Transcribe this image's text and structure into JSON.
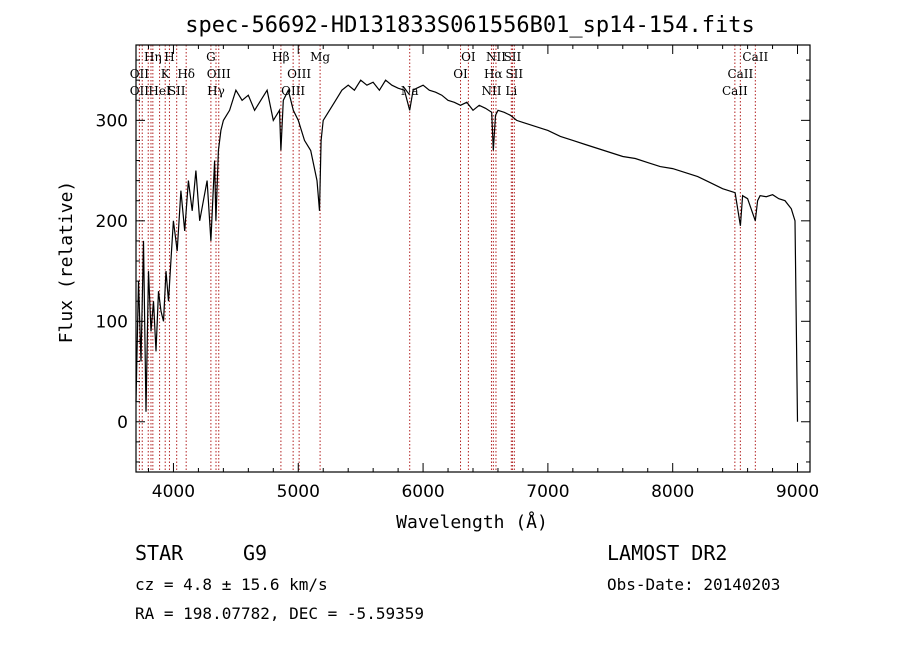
{
  "chart_data": {
    "type": "line",
    "title": "spec-56692-HD131833S061556B01_sp14-154.fits",
    "xlabel": "Wavelength (Å)",
    "ylabel": "Flux (relative)",
    "xlim": [
      3700,
      9100
    ],
    "ylim": [
      -50,
      375
    ],
    "x_ticks": [
      4000,
      5000,
      6000,
      7000,
      8000,
      9000
    ],
    "y_ticks": [
      0,
      100,
      200,
      300
    ],
    "series": [
      {
        "x": [
          3700,
          3720,
          3740,
          3760,
          3780,
          3800,
          3820,
          3840,
          3860,
          3880,
          3900,
          3920,
          3940,
          3960,
          3980,
          4000,
          4030,
          4060,
          4090,
          4120,
          4150,
          4180,
          4210,
          4240,
          4270,
          4300,
          4330,
          4340,
          4360,
          4380,
          4400,
          4450,
          4500,
          4550,
          4600,
          4650,
          4700,
          4750,
          4800,
          4850,
          4861,
          4880,
          4920,
          4960,
          5000,
          5050,
          5100,
          5150,
          5170,
          5183,
          5200,
          5250,
          5300,
          5350,
          5400,
          5450,
          5500,
          5550,
          5600,
          5650,
          5700,
          5750,
          5800,
          5850,
          5893,
          5920,
          5950,
          6000,
          6050,
          6100,
          6150,
          6200,
          6250,
          6300,
          6350,
          6400,
          6450,
          6500,
          6550,
          6563,
          6580,
          6600,
          6650,
          6700,
          6750,
          6800,
          6850,
          6900,
          6950,
          7000,
          7100,
          7200,
          7300,
          7400,
          7500,
          7600,
          7700,
          7800,
          7900,
          8000,
          8100,
          8200,
          8300,
          8400,
          8500,
          8542,
          8560,
          8600,
          8662,
          8680,
          8700,
          8750,
          8800,
          8850,
          8900,
          8950,
          8980,
          9000
        ],
        "y": [
          20,
          140,
          60,
          180,
          10,
          150,
          90,
          120,
          70,
          130,
          110,
          100,
          150,
          120,
          160,
          200,
          170,
          230,
          190,
          240,
          210,
          250,
          200,
          220,
          240,
          180,
          260,
          200,
          270,
          290,
          300,
          310,
          330,
          320,
          325,
          310,
          320,
          330,
          300,
          310,
          270,
          320,
          330,
          310,
          300,
          280,
          270,
          240,
          210,
          280,
          300,
          310,
          320,
          330,
          335,
          330,
          340,
          335,
          338,
          330,
          340,
          335,
          332,
          330,
          310,
          330,
          332,
          335,
          330,
          328,
          325,
          320,
          318,
          315,
          318,
          310,
          315,
          312,
          308,
          270,
          305,
          310,
          308,
          305,
          300,
          298,
          296,
          294,
          292,
          290,
          284,
          280,
          276,
          272,
          268,
          264,
          262,
          258,
          254,
          252,
          248,
          244,
          238,
          232,
          228,
          195,
          225,
          222,
          200,
          220,
          225,
          224,
          226,
          222,
          220,
          212,
          200,
          0
        ]
      }
    ],
    "vlines": [
      3727,
      3750,
      3798,
      3820,
      3835,
      3889,
      3934,
      3968,
      4026,
      4102,
      4300,
      4341,
      4363,
      4861,
      4959,
      5007,
      5175,
      5893,
      6300,
      6363,
      6548,
      6563,
      6584,
      6707,
      6716,
      6731,
      8498,
      8542,
      8662
    ],
    "line_labels": [
      {
        "text": "Hη",
        "x": 3835,
        "row": 0
      },
      {
        "text": "H",
        "x": 3968,
        "row": 0
      },
      {
        "text": "OII",
        "x": 3727,
        "row": 1
      },
      {
        "text": "K",
        "x": 3934,
        "row": 1
      },
      {
        "text": "Hδ",
        "x": 4102,
        "row": 1
      },
      {
        "text": "OII",
        "x": 3727,
        "row": 2
      },
      {
        "text": "HeI",
        "x": 3889,
        "row": 2
      },
      {
        "text": "SII",
        "x": 4026,
        "row": 2
      },
      {
        "text": "G",
        "x": 4300,
        "row": 0
      },
      {
        "text": "OIII",
        "x": 4363,
        "row": 1
      },
      {
        "text": "Hγ",
        "x": 4341,
        "row": 2
      },
      {
        "text": "Hβ",
        "x": 4861,
        "row": 0
      },
      {
        "text": "OIII",
        "x": 5007,
        "row": 1
      },
      {
        "text": "OIII",
        "x": 4959,
        "row": 2
      },
      {
        "text": "Mg",
        "x": 5175,
        "row": 0
      },
      {
        "text": "Na",
        "x": 5893,
        "row": 2
      },
      {
        "text": "OI",
        "x": 6363,
        "row": 0
      },
      {
        "text": "OI",
        "x": 6300,
        "row": 1
      },
      {
        "text": "NII",
        "x": 6584,
        "row": 0
      },
      {
        "text": "SII",
        "x": 6716,
        "row": 0
      },
      {
        "text": "Hα",
        "x": 6563,
        "row": 1
      },
      {
        "text": "SII",
        "x": 6731,
        "row": 1
      },
      {
        "text": "NII",
        "x": 6548,
        "row": 2
      },
      {
        "text": "Li",
        "x": 6707,
        "row": 2
      },
      {
        "text": "CaII",
        "x": 8662,
        "row": 0
      },
      {
        "text": "CaII",
        "x": 8542,
        "row": 1
      },
      {
        "text": "CaII",
        "x": 8498,
        "row": 2
      }
    ],
    "line_color": "#000000",
    "vline_color": "#b22222"
  },
  "info": {
    "object_type": "STAR",
    "subclass": "G9",
    "survey": "LAMOST DR2",
    "cz": "cz = 4.8 ± 15.6 km/s",
    "obs_date": "Obs-Date: 20140203",
    "coords": "RA = 198.07782, DEC =  -5.59359"
  }
}
